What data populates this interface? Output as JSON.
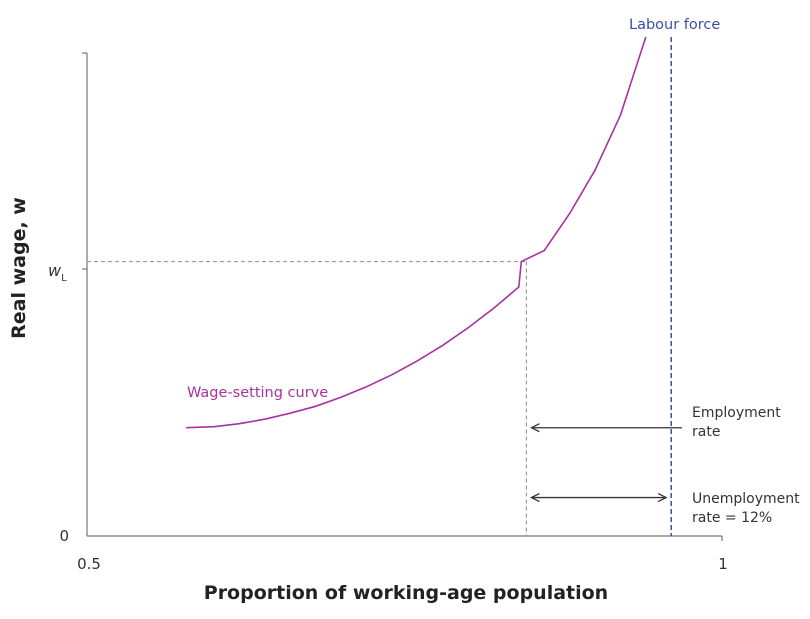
{
  "chart_data": {
    "type": "line",
    "xlabel": "Proportion of working-age population",
    "ylabel": "Real wage, w",
    "xlim": [
      0.5,
      1
    ],
    "ylim": [
      0,
      1
    ],
    "x_ticks": [
      {
        "value": 0.5,
        "label": "0.5"
      },
      {
        "value": 1,
        "label": "1"
      }
    ],
    "y_ticks": [
      {
        "value": 0,
        "label": "0"
      }
    ],
    "y_marker": {
      "value": 0.55,
      "label": "w",
      "subscript": "L"
    },
    "grid": false,
    "series": [
      {
        "name": "Wage-setting curve",
        "color": "#a8329f",
        "x": [
          0.578,
          0.6,
          0.62,
          0.64,
          0.66,
          0.68,
          0.7,
          0.72,
          0.74,
          0.76,
          0.78,
          0.8,
          0.82,
          0.84,
          0.842,
          0.86,
          0.88,
          0.9,
          0.92,
          0.94
        ],
        "y": [
          0.217,
          0.219,
          0.225,
          0.234,
          0.246,
          0.26,
          0.278,
          0.299,
          0.323,
          0.351,
          0.382,
          0.417,
          0.456,
          0.499,
          0.55,
          0.572,
          0.646,
          0.733,
          0.843,
          1.0
        ]
      }
    ],
    "reference_lines": [
      {
        "type": "vertical",
        "x": 0.96,
        "label": "Labour force",
        "color": "#3a50a8",
        "style": "dashed"
      },
      {
        "type": "vertical",
        "x": 0.846,
        "color": "#999999",
        "style": "dashed",
        "y_to": 0.55
      },
      {
        "type": "horizontal",
        "y": 0.55,
        "color": "#999999",
        "style": "dashed",
        "x_to": 0.846
      }
    ],
    "annotations": [
      {
        "name": "employment-rate",
        "lines": [
          "Employment",
          "rate"
        ],
        "arrow": "left",
        "from_x": 0.846,
        "to_x": 1.0,
        "y": 0.217
      },
      {
        "name": "unemployment-rate",
        "lines": [
          "Unemployment",
          "rate = 12%"
        ],
        "arrow": "both",
        "from_x": 0.846,
        "to_x": 0.96,
        "y": 0.077
      }
    ]
  }
}
